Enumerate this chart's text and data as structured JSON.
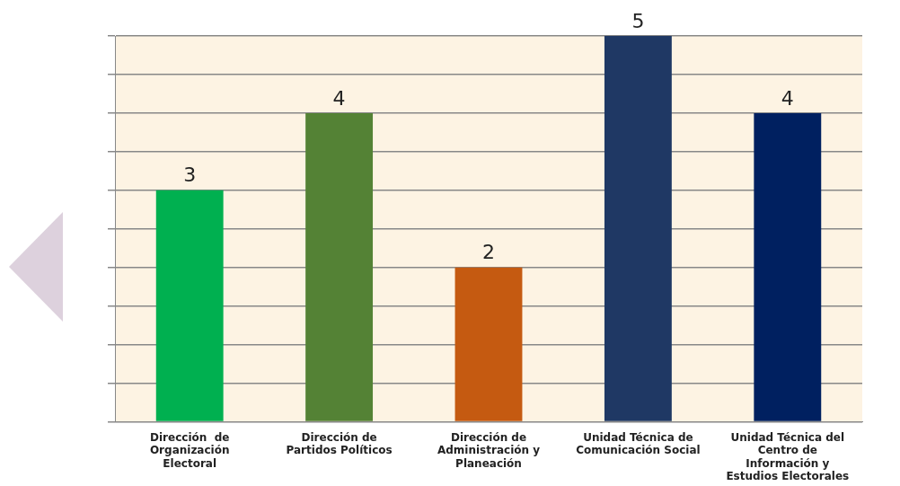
{
  "chart_data": {
    "type": "bar",
    "categories": [
      "Dirección  de Organización Electoral",
      "Dirección de Partidos Políticos",
      "Dirección de Administración y Planeación",
      "Unidad Técnica de Comunicación Social",
      "Unidad Técnica del Centro de Información y Estudios Electorales"
    ],
    "values": [
      3,
      4,
      2,
      5,
      4
    ],
    "colors": [
      "#00b050",
      "#548235",
      "#c55a11",
      "#1f3864",
      "#002060"
    ],
    "grid": "y",
    "data_labels": true,
    "tick_labels": "x",
    "legend": false
  }
}
